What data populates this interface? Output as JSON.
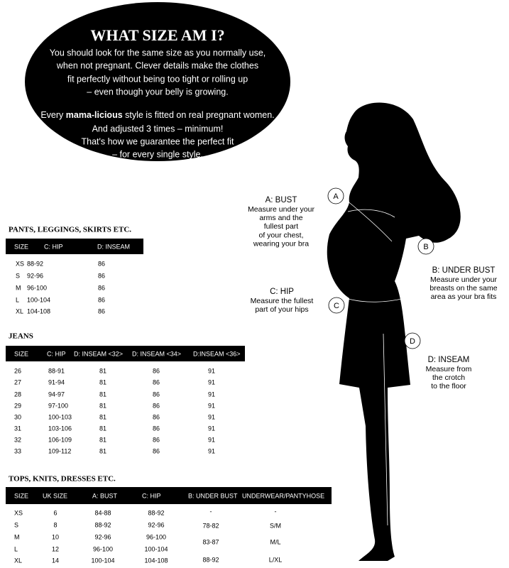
{
  "header": {
    "title": "WHAT SIZE AM I?",
    "paragraph_1": [
      "You should look for the same size as you normally use,",
      "when not pregnant. Clever details make the clothes",
      "fit perfectly without being too tight or rolling up",
      "– even though your belly is growing."
    ],
    "brand_line": [
      "Every ",
      "mama-licious",
      " style is fitted on real pregnant women."
    ],
    "paragraph_2": [
      "And adjusted 3 times – minimum!",
      "That's how we guarantee the perfect fit",
      "– for every single style."
    ]
  },
  "measurements": [
    {
      "letter": "A",
      "label": "A: BUST",
      "lines": [
        "Measure under your",
        "arms and the",
        "fullest part",
        "of your chest,",
        "wearing your bra"
      ]
    },
    {
      "letter": "B",
      "label": "B: UNDER BUST",
      "lines": [
        "Measure under your",
        "breasts on the same",
        "area as your bra fits"
      ]
    },
    {
      "letter": "C",
      "label": "C: HIP",
      "lines": [
        "Measure the fullest",
        "part of your hips"
      ]
    },
    {
      "letter": "D",
      "label": "D: INSEAM",
      "lines": [
        "Measure from",
        "the crotch",
        "to the floor"
      ]
    }
  ],
  "tables": {
    "pants": {
      "title": "PANTS, LEGGINGS, SKIRTS ETC.",
      "header": [
        "SIZE",
        "C: HIP",
        "D: INSEAM"
      ],
      "rows": [
        [
          "XS",
          "88-92",
          "86"
        ],
        [
          "S",
          "92-96",
          "86"
        ],
        [
          "M",
          "96-100",
          "86"
        ],
        [
          "L",
          "100-104",
          "86"
        ],
        [
          "XL",
          "104-108",
          "86"
        ]
      ]
    },
    "jeans": {
      "title": "JEANS",
      "header": [
        "SIZE",
        "C: HIP",
        "D: INSEAM <32>",
        "D: INSEAM <34>",
        "D:INSEAM <36>"
      ],
      "rows": [
        [
          "26",
          "88-91",
          "81",
          "86",
          "91"
        ],
        [
          "27",
          "91-94",
          "81",
          "86",
          "91"
        ],
        [
          "28",
          "94-97",
          "81",
          "86",
          "91"
        ],
        [
          "29",
          "97-100",
          "81",
          "86",
          "91"
        ],
        [
          "30",
          "100-103",
          "81",
          "86",
          "91"
        ],
        [
          "31",
          "103-106",
          "81",
          "86",
          "91"
        ],
        [
          "32",
          "106-109",
          "81",
          "86",
          "91"
        ],
        [
          "33",
          "109-112",
          "81",
          "86",
          "91"
        ]
      ]
    },
    "tops": {
      "title": "TOPS, KNITS, DRESSES ETC.",
      "header": [
        "SIZE",
        "UK SIZE",
        "A: BUST",
        "C: HIP",
        "B: UNDER BUST",
        "UNDERWEAR/PANTYHOSE"
      ],
      "rows": [
        [
          "XS",
          "6",
          "84-88",
          "88-92"
        ],
        [
          "S",
          "8",
          "88-92",
          "92-96"
        ],
        [
          "M",
          "10",
          "92-96",
          "96-100"
        ],
        [
          "L",
          "12",
          "96-100",
          "100-104"
        ],
        [
          "XL",
          "14",
          "100-104",
          "104-108"
        ]
      ],
      "under_bust": [
        "-",
        "78-82",
        "83-87",
        "88-92"
      ],
      "underwear": [
        "-",
        "S/M",
        "M/L",
        "L/XL"
      ]
    }
  }
}
